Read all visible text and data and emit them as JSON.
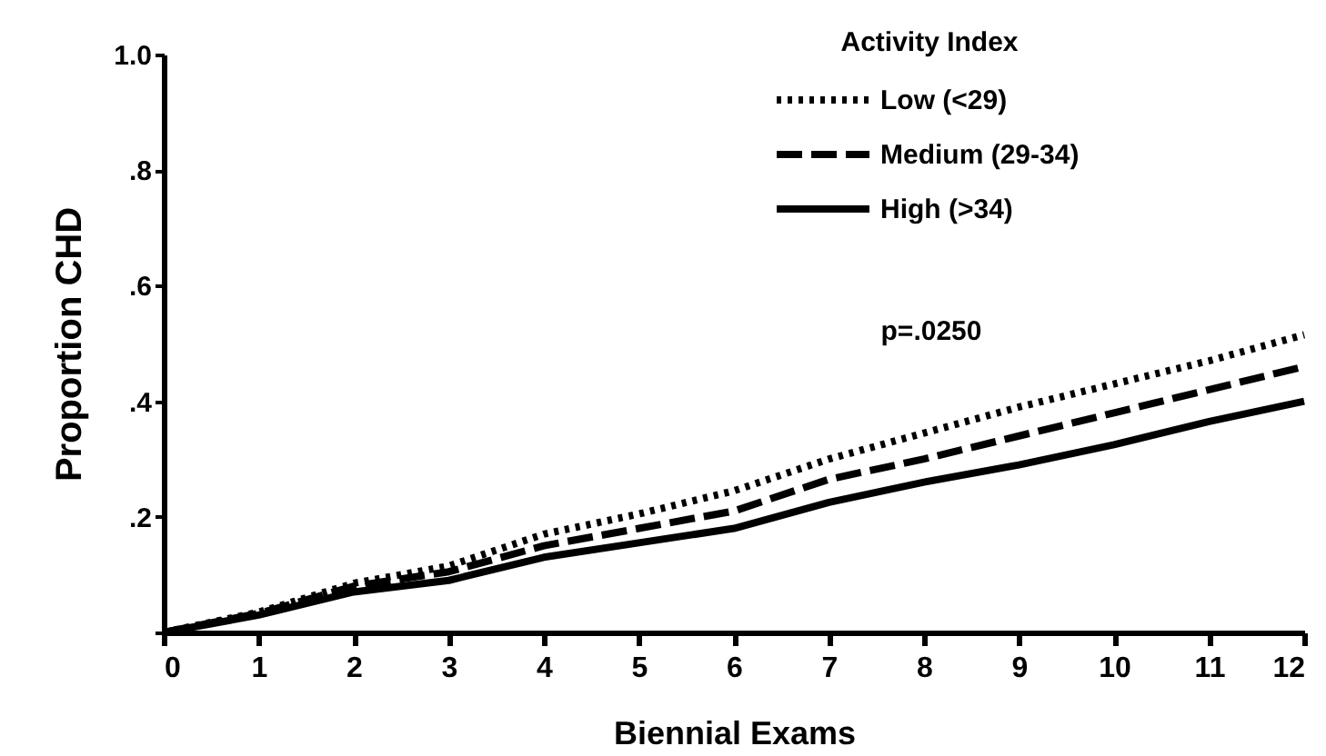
{
  "chart_data": {
    "type": "line",
    "xlabel": "Biennial Exams",
    "ylabel": "Proportion CHD",
    "legend_title": "Activity Index",
    "legend": "top right",
    "grid": false,
    "x": [
      0,
      1,
      2,
      3,
      4,
      5,
      6,
      7,
      8,
      9,
      10,
      11,
      12
    ],
    "series": [
      {
        "name": "Low  (<29)",
        "color": "#000000",
        "line_style": "dotted",
        "values": [
          0,
          0.035,
          0.085,
          0.115,
          0.17,
          0.205,
          0.245,
          0.3,
          0.345,
          0.39,
          0.43,
          0.47,
          0.515
        ]
      },
      {
        "name": "Medium  (29-34)",
        "color": "#000000",
        "line_style": "dashed",
        "values": [
          0,
          0.033,
          0.08,
          0.105,
          0.15,
          0.18,
          0.21,
          0.265,
          0.3,
          0.34,
          0.38,
          0.42,
          0.46
        ]
      },
      {
        "name": "High  (>34)",
        "color": "#000000",
        "line_style": "solid",
        "values": [
          0,
          0.03,
          0.07,
          0.09,
          0.13,
          0.155,
          0.18,
          0.225,
          0.26,
          0.29,
          0.325,
          0.365,
          0.4
        ]
      }
    ],
    "xlim": [
      0,
      12
    ],
    "xticks": [
      0,
      1,
      2,
      3,
      4,
      5,
      6,
      7,
      8,
      9,
      10,
      11,
      12
    ],
    "ylim": [
      0,
      1
    ],
    "yticks": [
      {
        "value": 0,
        "label": null
      },
      {
        "value": 0.2,
        "label": ".2"
      },
      {
        "value": 0.4,
        "label": ".4"
      },
      {
        "value": 0.6,
        "label": ".6"
      },
      {
        "value": 0.8,
        "label": ".8"
      },
      {
        "value": 1,
        "label": "1.0"
      }
    ],
    "annotations": [
      "p=.0250"
    ]
  }
}
